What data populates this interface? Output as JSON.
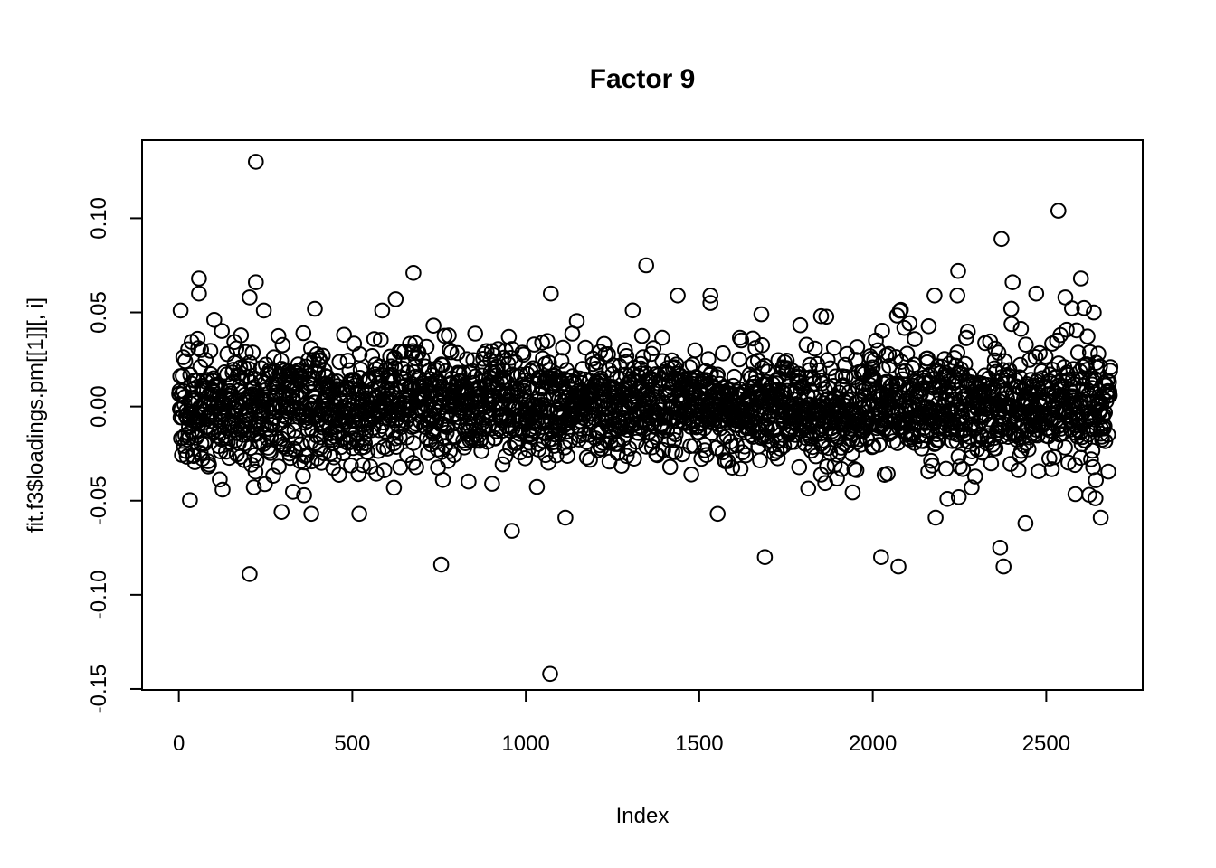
{
  "figure": {
    "title": "Factor 9",
    "xlabel": "Index",
    "ylabel": "fit.f3$loadings.pm[[1]][, i]"
  },
  "chart_data": {
    "type": "scatter",
    "title": "Factor 9",
    "xlabel": "Index",
    "ylabel": "fit.f3$loadings.pm[[1]][, i]",
    "marker": "open-circle",
    "marker_color": "#000000",
    "background": "#ffffff",
    "grid": false,
    "legend": null,
    "n_points": 2685,
    "xlim": [
      -106,
      2778
    ],
    "ylim": [
      -0.1505,
      0.1415
    ],
    "x_ticks": {
      "values": [
        0,
        500,
        1000,
        1500,
        2000,
        2500
      ],
      "labels": [
        "0",
        "500",
        "1000",
        "1500",
        "2000",
        "2500"
      ]
    },
    "y_ticks": {
      "values": [
        -0.15,
        -0.1,
        -0.05,
        0.0,
        0.05,
        0.1
      ],
      "labels": [
        "-0.15",
        "-0.10",
        "-0.05",
        "0.00",
        "0.05",
        "0.10"
      ]
    },
    "band": {
      "seed": 9,
      "mean": 0,
      "sd": 0.0145,
      "sd_wide": 0.024,
      "p_wide": 0.08,
      "sd_wide2": 0.034,
      "p_wide2": 0.012,
      "clip": 0.053,
      "left_widen": {
        "mult": 0.3,
        "decay": 160
      },
      "right_upper_fringe": {
        "from": 2000,
        "p": 0.02,
        "min": 0.03,
        "max": 0.054
      }
    },
    "outliers": [
      [
        222,
        0.13
      ],
      [
        2535,
        0.104
      ],
      [
        2371,
        0.089
      ],
      [
        1347,
        0.075
      ],
      [
        2246,
        0.072
      ],
      [
        676,
        0.071
      ],
      [
        58,
        0.068
      ],
      [
        2600,
        0.068
      ],
      [
        2403,
        0.066
      ],
      [
        222,
        0.066
      ],
      [
        1072,
        0.06
      ],
      [
        58,
        0.06
      ],
      [
        2471,
        0.06
      ],
      [
        1438,
        0.059
      ],
      [
        1532,
        0.059
      ],
      [
        2178,
        0.059
      ],
      [
        2244,
        0.059
      ],
      [
        2555,
        0.058
      ],
      [
        204,
        0.058
      ],
      [
        625,
        0.057
      ],
      [
        1532,
        0.055
      ],
      [
        586,
        0.051
      ],
      [
        245,
        0.051
      ],
      [
        5,
        0.051
      ],
      [
        102,
        0.046
      ],
      [
        1679,
        0.049
      ],
      [
        1851,
        0.048
      ],
      [
        1070,
        -0.142
      ],
      [
        204,
        -0.089
      ],
      [
        2074,
        -0.085
      ],
      [
        756,
        -0.084
      ],
      [
        2377,
        -0.085
      ],
      [
        1689,
        -0.08
      ],
      [
        2024,
        -0.08
      ],
      [
        2367,
        -0.075
      ],
      [
        960,
        -0.066
      ],
      [
        2440,
        -0.062
      ],
      [
        1114,
        -0.059
      ],
      [
        2181,
        -0.059
      ],
      [
        2657,
        -0.059
      ],
      [
        1553,
        -0.057
      ],
      [
        382,
        -0.057
      ],
      [
        296,
        -0.056
      ],
      [
        520,
        -0.057
      ]
    ]
  }
}
